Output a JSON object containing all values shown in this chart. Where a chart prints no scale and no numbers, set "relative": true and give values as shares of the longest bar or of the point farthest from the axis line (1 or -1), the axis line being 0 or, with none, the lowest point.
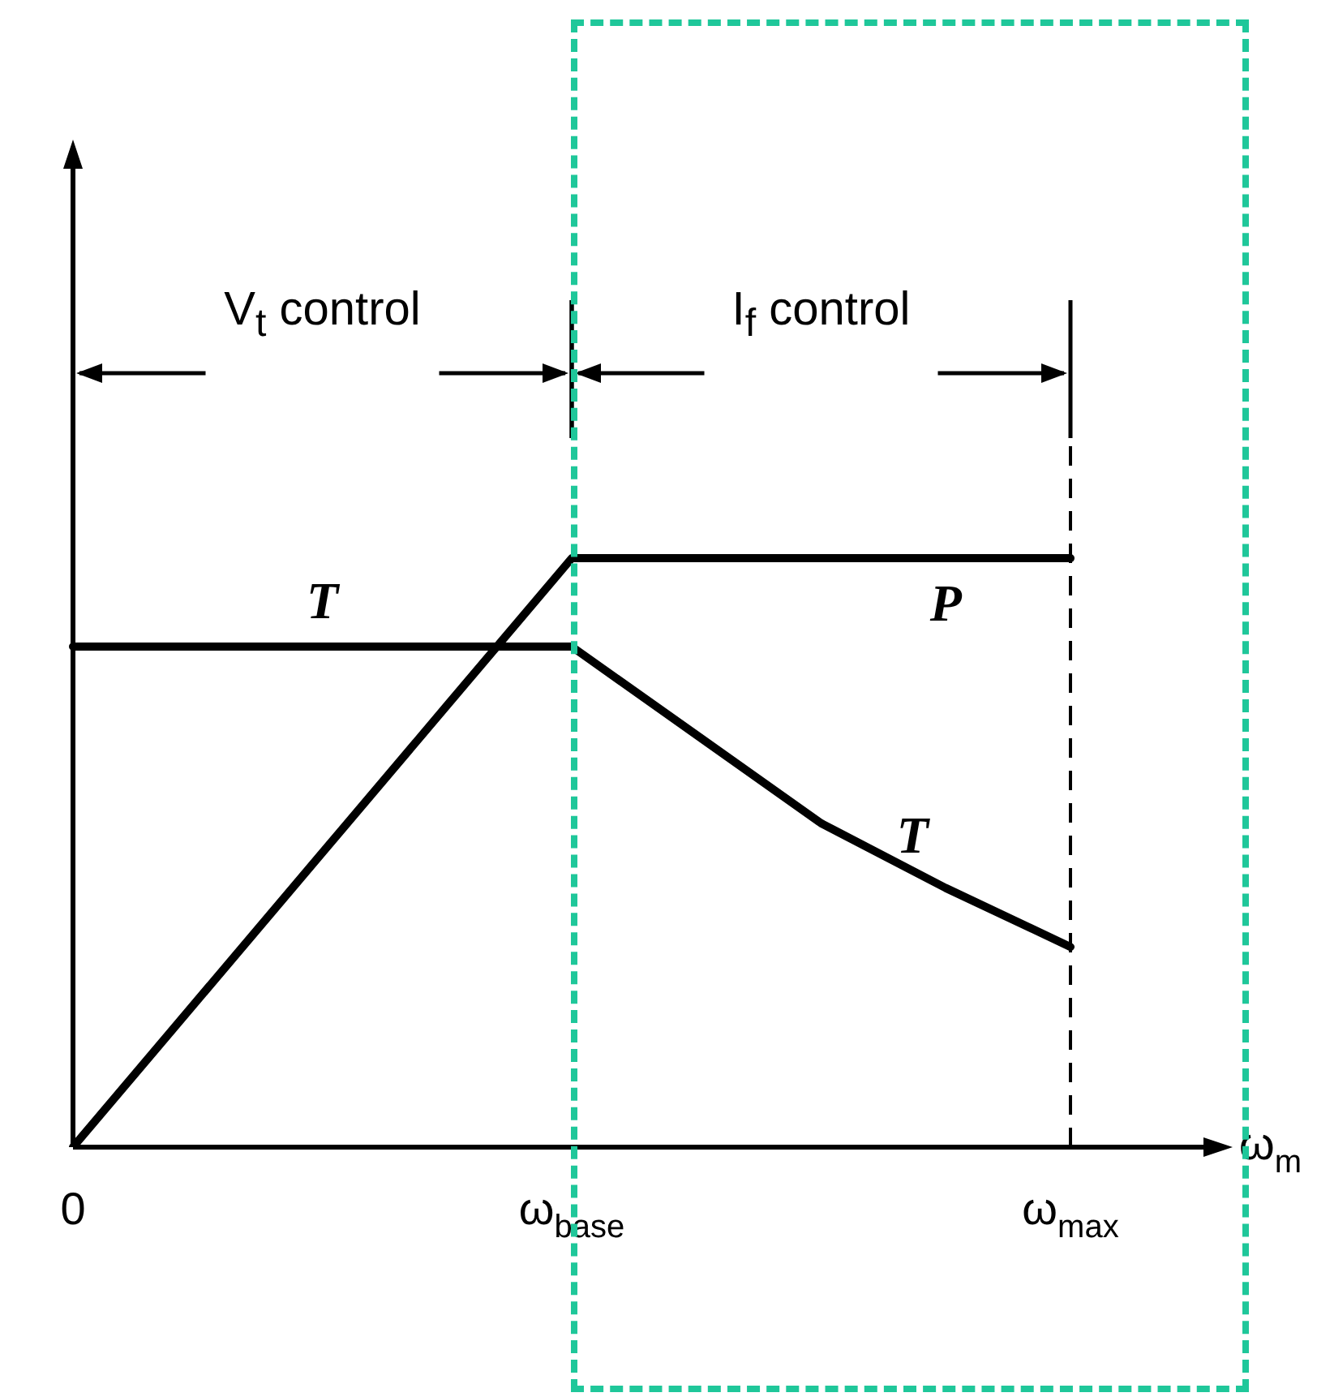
{
  "chart_data": {
    "type": "line",
    "relative": true,
    "xlabel": "ω$_{m}$",
    "categories": [
      "0",
      null,
      null,
      null,
      "ω$_{base}$",
      null,
      null,
      null,
      "ω$_{max}$"
    ],
    "series": [
      {
        "name": "T",
        "color": "#000000",
        "values": [
          0.85,
          0.85,
          0.85,
          0.85,
          0.85,
          0.7,
          0.55,
          0.44,
          0.34
        ]
      },
      {
        "name": "P",
        "color": "#000000",
        "values": [
          0,
          0.25,
          0.5,
          0.75,
          1,
          1,
          1,
          1,
          1
        ]
      }
    ],
    "ref_lines": [
      {
        "axis": "x",
        "value": "ω$_{max}$",
        "line_style": "dashed"
      }
    ],
    "annotations": [
      "V$_{t}$ control",
      "I$_{f}$ control"
    ]
  }
}
